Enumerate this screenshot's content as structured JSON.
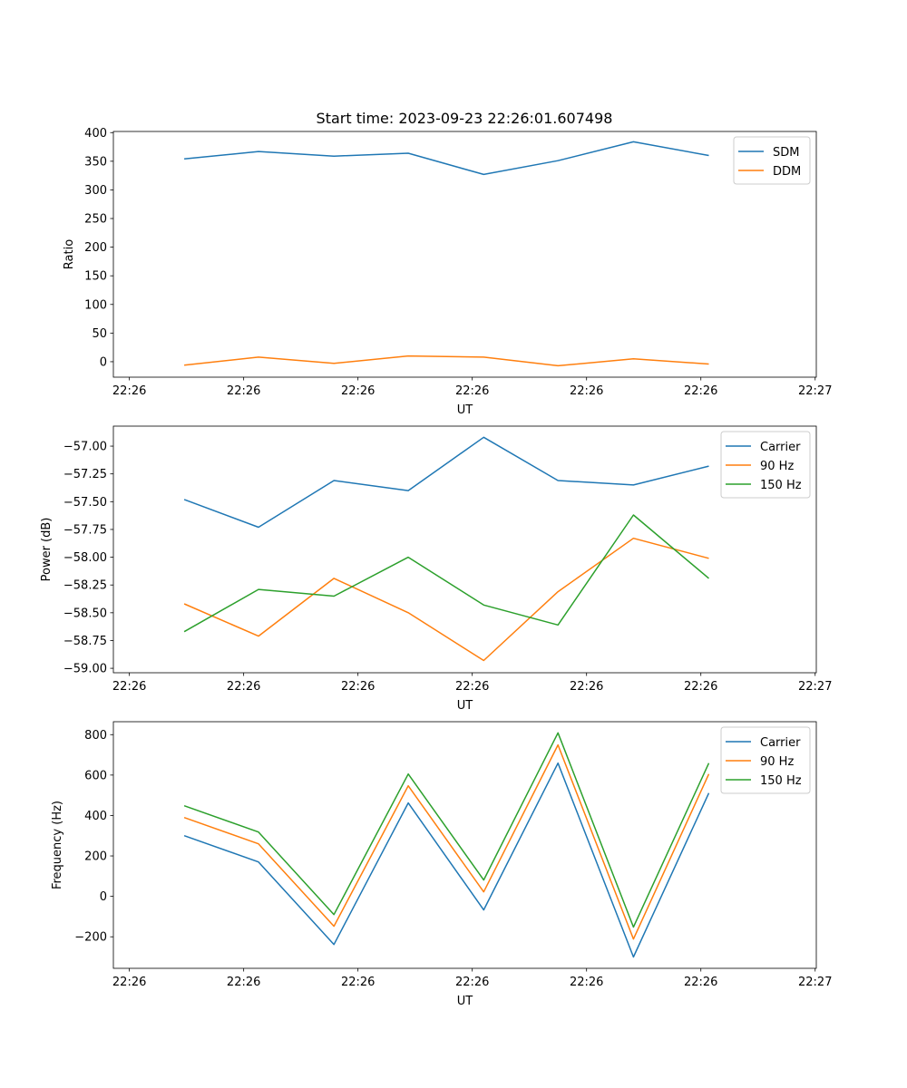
{
  "title": "Start time: 2023-09-23 22:26:01.607498",
  "colors": {
    "c0": "#1f77b4",
    "c1": "#ff7f0e",
    "c2": "#2ca02c"
  },
  "chart_data": [
    {
      "type": "line",
      "xlabel": "UT",
      "ylabel": "Ratio",
      "x_seconds_after_22_26_00": [
        4.8,
        11.3,
        17.9,
        24.4,
        31.0,
        37.5,
        44.1,
        50.7
      ],
      "xlim": [
        -1.4,
        60.1
      ],
      "xticks": [
        0,
        10,
        20,
        30,
        40,
        50,
        60
      ],
      "xtick_labels": [
        "22:26",
        "22:26",
        "22:26",
        "22:26",
        "22:26",
        "22:26",
        "22:27"
      ],
      "ylim": [
        -27,
        402
      ],
      "yticks": [
        0,
        50,
        100,
        150,
        200,
        250,
        300,
        350,
        400
      ],
      "ytick_labels": [
        "0",
        "50",
        "100",
        "150",
        "200",
        "250",
        "300",
        "350",
        "400"
      ],
      "legend": "top-right",
      "series": [
        {
          "name": "SDM",
          "values": [
            354,
            367,
            359,
            364,
            327,
            351,
            384,
            360
          ]
        },
        {
          "name": "DDM",
          "values": [
            -6,
            8,
            -3,
            10,
            8,
            -7,
            5,
            -4
          ]
        }
      ]
    },
    {
      "type": "line",
      "xlabel": "UT",
      "ylabel": "Power (dB)",
      "x_seconds_after_22_26_00": [
        4.8,
        11.3,
        17.9,
        24.4,
        31.0,
        37.5,
        44.1,
        50.7
      ],
      "xlim": [
        -1.4,
        60.1
      ],
      "xticks": [
        0,
        10,
        20,
        30,
        40,
        50,
        60
      ],
      "xtick_labels": [
        "22:26",
        "22:26",
        "22:26",
        "22:26",
        "22:26",
        "22:26",
        "22:27"
      ],
      "ylim": [
        -59.04,
        -56.82
      ],
      "yticks": [
        -59.0,
        -58.75,
        -58.5,
        -58.25,
        -58.0,
        -57.75,
        -57.5,
        -57.25,
        -57.0
      ],
      "ytick_labels": [
        "−59.00",
        "−58.75",
        "−58.50",
        "−58.25",
        "−58.00",
        "−57.75",
        "−57.50",
        "−57.25",
        "−57.00"
      ],
      "legend": "top-right",
      "series": [
        {
          "name": "Carrier",
          "values": [
            -57.48,
            -57.73,
            -57.31,
            -57.4,
            -56.92,
            -57.31,
            -57.35,
            -57.18
          ]
        },
        {
          "name": "90 Hz",
          "values": [
            -58.42,
            -58.71,
            -58.19,
            -58.5,
            -58.93,
            -58.31,
            -57.83,
            -58.01
          ]
        },
        {
          "name": "150 Hz",
          "values": [
            -58.67,
            -58.29,
            -58.35,
            -58.0,
            -58.43,
            -58.61,
            -57.62,
            -58.19
          ]
        }
      ]
    },
    {
      "type": "line",
      "xlabel": "UT",
      "ylabel": "Frequency (Hz)",
      "x_seconds_after_22_26_00": [
        4.8,
        11.3,
        17.9,
        24.4,
        31.0,
        37.5,
        44.1,
        50.7
      ],
      "xlim": [
        -1.4,
        60.1
      ],
      "xticks": [
        0,
        10,
        20,
        30,
        40,
        50,
        60
      ],
      "xtick_labels": [
        "22:26",
        "22:26",
        "22:26",
        "22:26",
        "22:26",
        "22:26",
        "22:27"
      ],
      "ylim": [
        -356,
        864
      ],
      "yticks": [
        -200,
        0,
        200,
        400,
        600,
        800
      ],
      "ytick_labels": [
        "−200",
        "0",
        "200",
        "400",
        "600",
        "800"
      ],
      "legend": "top-right",
      "series": [
        {
          "name": "Carrier",
          "values": [
            300,
            170,
            -238,
            462,
            -67,
            659,
            -300,
            511
          ]
        },
        {
          "name": "90 Hz",
          "values": [
            390,
            260,
            -148,
            547,
            22,
            749,
            -211,
            605
          ]
        },
        {
          "name": "150 Hz",
          "values": [
            448,
            318,
            -90,
            605,
            81,
            809,
            -152,
            659
          ]
        }
      ]
    }
  ]
}
